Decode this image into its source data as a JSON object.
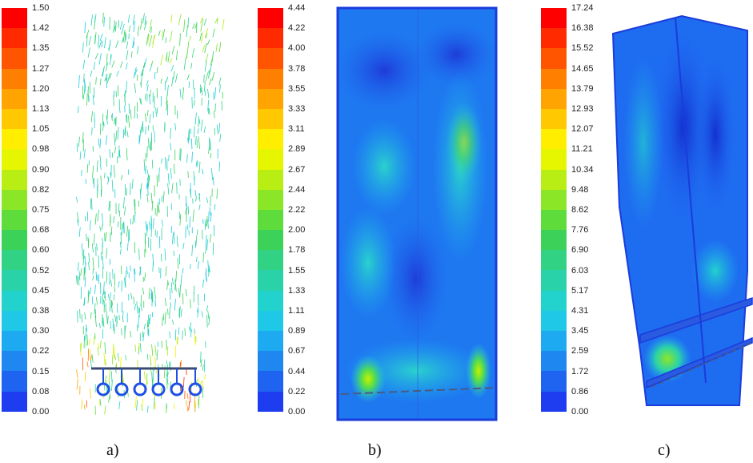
{
  "legends": [
    {
      "labels": [
        "1.50",
        "1.42",
        "1.35",
        "1.27",
        "1.20",
        "1.13",
        "1.05",
        "0.98",
        "0.90",
        "0.82",
        "0.75",
        "0.68",
        "0.60",
        "0.52",
        "0.45",
        "0.38",
        "0.30",
        "0.22",
        "0.15",
        "0.08",
        "0.00"
      ]
    },
    {
      "labels": [
        "4.44",
        "4.22",
        "4.00",
        "3.78",
        "3.55",
        "3.33",
        "3.11",
        "2.89",
        "2.67",
        "2.44",
        "2.22",
        "2.00",
        "1.78",
        "1.55",
        "1.33",
        "1.11",
        "0.89",
        "0.67",
        "0.44",
        "0.22",
        "0.00"
      ]
    },
    {
      "labels": [
        "17.24",
        "16.38",
        "15.52",
        "14.65",
        "13.79",
        "12.93",
        "12.07",
        "11.21",
        "10.34",
        "9.48",
        "8.62",
        "7.76",
        "6.90",
        "6.03",
        "5.17",
        "4.31",
        "3.45",
        "2.59",
        "1.72",
        "0.86",
        "0.00"
      ]
    }
  ],
  "colormap": [
    "#ff0000",
    "#ff2a00",
    "#ff5500",
    "#ff7f00",
    "#ffa400",
    "#ffc800",
    "#ffee00",
    "#e6f500",
    "#b8ee14",
    "#8ce628",
    "#5edc3c",
    "#3cd25a",
    "#32d284",
    "#2ad2aa",
    "#22d2cc",
    "#1ec8e6",
    "#1eaaf0",
    "#1e87f0",
    "#1e64f0",
    "#1e3cf0",
    "#0a14e6"
  ],
  "captions": {
    "a": "a)",
    "b": "b)",
    "c": "c)"
  }
}
